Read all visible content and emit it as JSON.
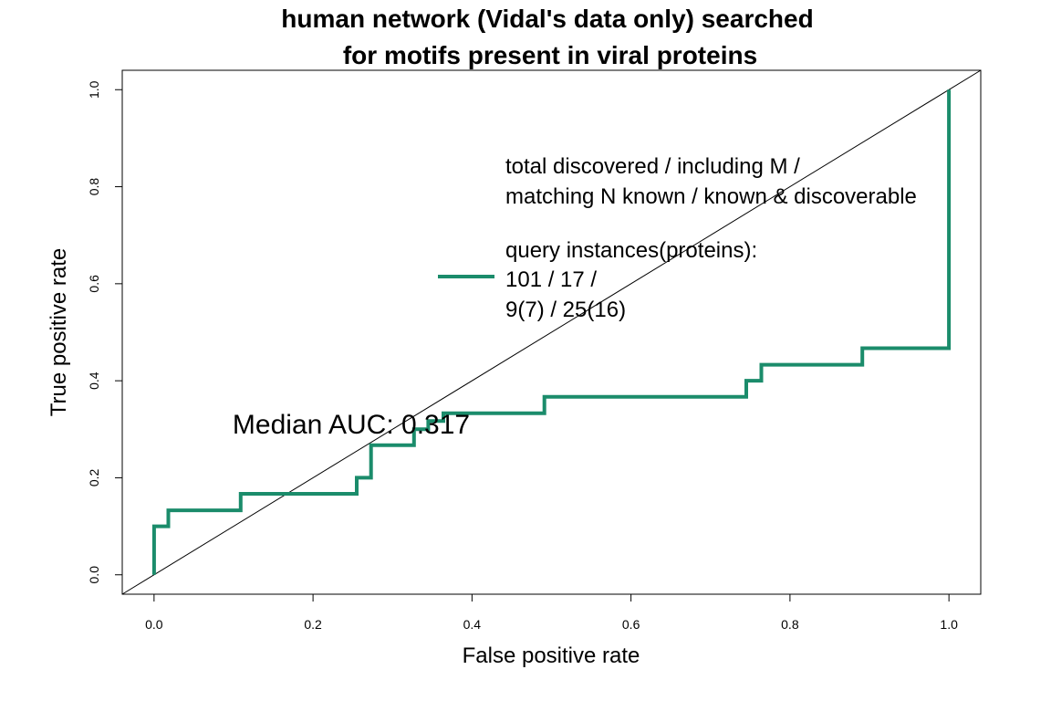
{
  "chart_data": {
    "type": "line",
    "title_lines": [
      "human network (Vidal's data only) searched",
      "for motifs present in viral proteins"
    ],
    "xlabel": "False positive rate",
    "ylabel": "True positive rate",
    "xlim": [
      -0.04,
      1.04
    ],
    "ylim": [
      -0.04,
      1.04
    ],
    "xticks": [
      0.0,
      0.2,
      0.4,
      0.6,
      0.8,
      1.0
    ],
    "yticks": [
      0.0,
      0.2,
      0.4,
      0.6,
      0.8,
      1.0
    ],
    "xtick_labels": [
      "0.0",
      "0.2",
      "0.4",
      "0.6",
      "0.8",
      "1.0"
    ],
    "ytick_labels": [
      "0.0",
      "0.2",
      "0.4",
      "0.6",
      "0.8",
      "1.0"
    ],
    "grid": false,
    "reference_line": {
      "from": [
        0,
        0
      ],
      "to": [
        1,
        1
      ],
      "color": "#000000"
    },
    "series": [
      {
        "color": "#1b8c6b",
        "x": [
          0.0,
          0.0,
          0.018,
          0.018,
          0.109,
          0.109,
          0.255,
          0.255,
          0.273,
          0.273,
          0.327,
          0.327,
          0.345,
          0.345,
          0.364,
          0.364,
          0.491,
          0.491,
          0.745,
          0.745,
          0.764,
          0.764,
          0.891,
          0.891,
          1.0,
          1.0
        ],
        "y": [
          0.0,
          0.1,
          0.1,
          0.133,
          0.133,
          0.167,
          0.167,
          0.2,
          0.2,
          0.267,
          0.267,
          0.3,
          0.3,
          0.317,
          0.317,
          0.333,
          0.333,
          0.367,
          0.367,
          0.4,
          0.4,
          0.433,
          0.433,
          0.467,
          0.467,
          1.0
        ]
      }
    ],
    "legend": {
      "placement": "top-right",
      "lines": [
        "total discovered / including M /",
        "matching N known / known & discoverable",
        "query instances(proteins):",
        "101 / 17 /",
        "9(7) / 25(16)"
      ]
    },
    "annotation": "Median AUC: 0.317"
  }
}
